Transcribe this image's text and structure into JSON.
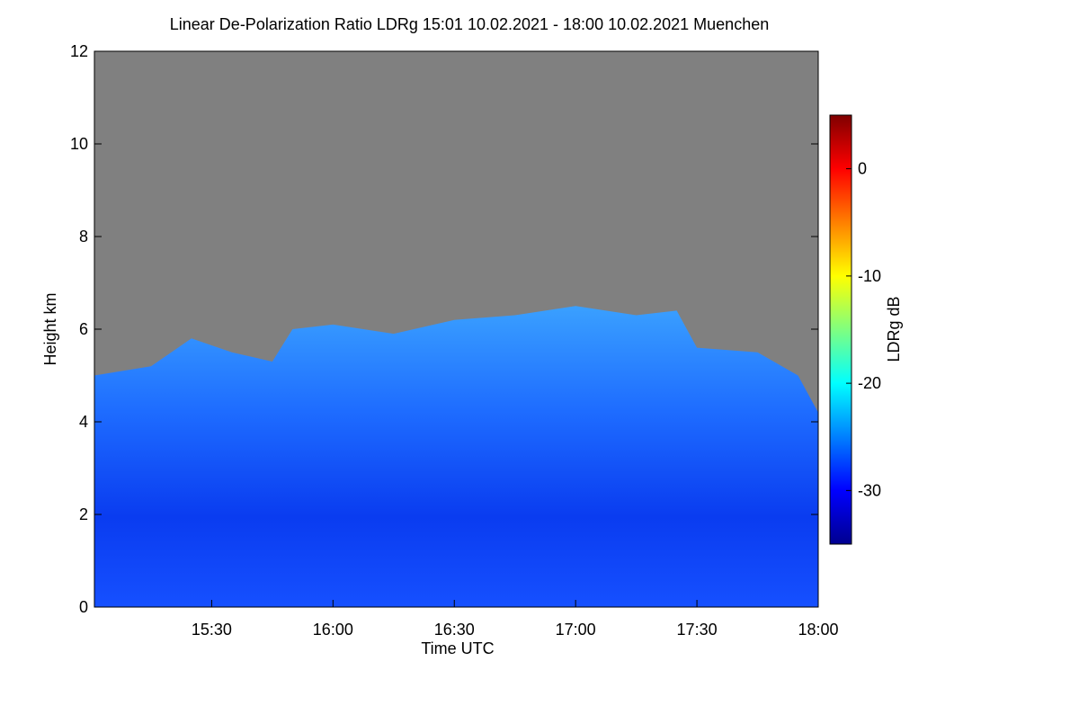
{
  "chart_data": {
    "type": "heatmap",
    "title": "Linear De-Polarization Ratio LDRg   15:01 10.02.2021 - 18:00 10.02.2021 Muenchen",
    "x_label": "Time UTC",
    "y_label": "Height km",
    "xlim": [
      15.0167,
      18.0
    ],
    "xticks": [
      {
        "value": 15.5,
        "label": "15:30"
      },
      {
        "value": 16.0,
        "label": "16:00"
      },
      {
        "value": 16.5,
        "label": "16:30"
      },
      {
        "value": 17.0,
        "label": "17:00"
      },
      {
        "value": 17.5,
        "label": "17:30"
      },
      {
        "value": 18.0,
        "label": "18:00"
      }
    ],
    "ylim": [
      0,
      12
    ],
    "yticks": [
      0,
      2,
      4,
      6,
      8,
      10,
      12
    ],
    "x": [
      15.0167,
      15.25,
      15.4167,
      15.5833,
      15.75,
      15.8333,
      16.0,
      16.25,
      16.5,
      16.75,
      17.0,
      17.25,
      17.4167,
      17.5,
      17.75,
      17.9167,
      18.0
    ],
    "values": [
      5.0,
      5.2,
      5.8,
      5.5,
      5.3,
      6.0,
      6.1,
      5.9,
      6.2,
      6.3,
      6.5,
      6.3,
      6.4,
      5.6,
      5.5,
      5.0,
      4.2
    ],
    "colorbar": {
      "label": "LDRg dB",
      "clim": [
        -35,
        5
      ],
      "ticks": [
        0,
        -10,
        -20,
        -30
      ]
    }
  }
}
